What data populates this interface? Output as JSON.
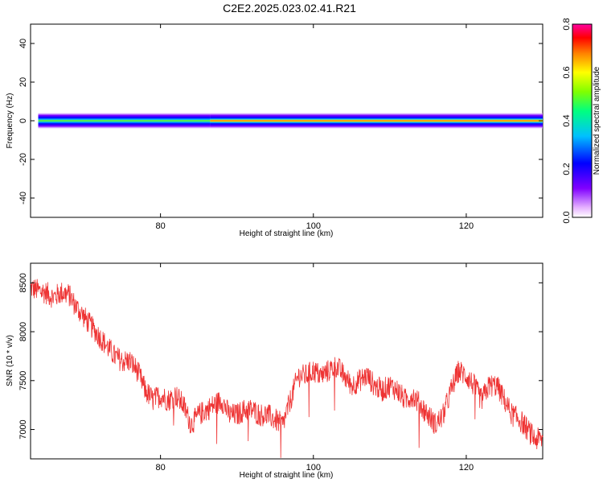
{
  "title": "C2E2.2025.023.02.41.R21",
  "chart_data": [
    {
      "type": "heatmap",
      "xlabel": "Height of straight line (km)",
      "ylabel": "Frequency (Hz)",
      "xlim": [
        63,
        130
      ],
      "ylim": [
        -50,
        50
      ],
      "x_ticks": [
        80,
        100,
        120
      ],
      "y_ticks": [
        40,
        20,
        0,
        -20,
        -40
      ],
      "grid": false,
      "band": {
        "x_start": 64,
        "x_end": 130,
        "segments": [
          {
            "x0": 64,
            "x1": 86.5,
            "color_scale_peak": 0.45,
            "half_width_hz": 4
          },
          {
            "x0": 86.5,
            "x1": 130,
            "color_scale_peak": 0.8,
            "half_width_hz": 4
          }
        ],
        "center_frequency_hz": 0
      },
      "colorbar": {
        "label": "Normalized spectral amplitude",
        "range": [
          0.0,
          0.8
        ],
        "ticks": [
          "0.0",
          "0.2",
          "0.4",
          "0.6",
          "0.8"
        ],
        "colormap": "rainbow (white-violet-blue-cyan-green-yellow-orange-red-magenta)"
      }
    },
    {
      "type": "line",
      "xlabel": "Height of straight line (km)",
      "ylabel": "SNR (10 * v/v)",
      "xlim": [
        63,
        130
      ],
      "ylim": [
        6700,
        8700
      ],
      "x_ticks": [
        80,
        100,
        120
      ],
      "y_ticks": [
        7000,
        7500,
        8000,
        8500
      ],
      "grid": false,
      "series": [
        {
          "color": "#ee3333",
          "x": [
            63,
            64,
            65,
            66,
            67,
            68,
            69,
            70,
            71,
            72,
            73,
            74,
            75,
            76,
            77,
            78,
            79,
            80,
            81,
            82,
            83,
            84,
            85,
            86,
            87,
            88,
            89,
            90,
            91,
            92,
            93,
            94,
            95,
            96,
            97,
            98,
            99,
            100,
            101,
            102,
            103,
            104,
            105,
            106,
            107,
            108,
            109,
            110,
            111,
            112,
            113,
            114,
            115,
            116,
            117,
            118,
            119,
            120,
            121,
            122,
            123,
            124,
            125,
            126,
            127,
            128,
            129,
            130
          ],
          "y": [
            8450,
            8420,
            8400,
            8350,
            8400,
            8380,
            8250,
            8150,
            8050,
            7950,
            7850,
            7750,
            7700,
            7700,
            7600,
            7400,
            7300,
            7350,
            7300,
            7350,
            7250,
            7050,
            7150,
            7200,
            7250,
            7300,
            7150,
            7150,
            7200,
            7200,
            7150,
            7150,
            7100,
            7050,
            7300,
            7550,
            7550,
            7600,
            7550,
            7600,
            7650,
            7550,
            7450,
            7500,
            7550,
            7450,
            7400,
            7450,
            7400,
            7300,
            7350,
            7250,
            7150,
            7050,
            7150,
            7400,
            7600,
            7550,
            7450,
            7300,
            7450,
            7450,
            7300,
            7150,
            7100,
            7000,
            6900,
            6900
          ]
        }
      ]
    }
  ]
}
